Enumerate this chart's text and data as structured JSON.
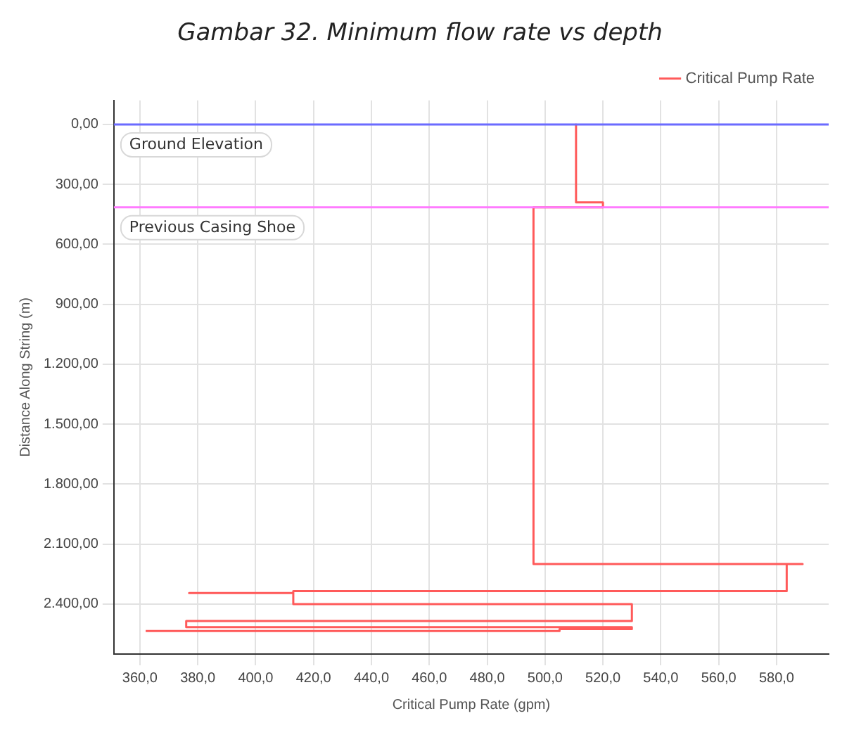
{
  "chart_data": {
    "type": "line",
    "title": "Gambar 32. Minimum flow rate vs depth",
    "xlabel": "Critical Pump Rate (gpm)",
    "ylabel": "Distance Along String (m)",
    "series": [
      {
        "name": "Critical Pump Rate",
        "color": "#ff5a5a",
        "x": [
          510.7,
          510.7,
          520,
          520,
          496,
          496,
          589,
          583.5,
          583.5,
          413,
          413,
          377,
          413,
          413,
          530,
          530,
          376,
          376,
          530,
          530,
          505,
          505,
          362
        ],
        "values": [
          0,
          390,
          390,
          415,
          415,
          2200,
          2200,
          2200,
          2335,
          2335,
          2345,
          2345,
          2345,
          2400,
          2400,
          2485,
          2485,
          2515,
          2515,
          2525,
          2525,
          2535,
          2535
        ]
      }
    ],
    "xlim": [
      351,
      598
    ],
    "ylim": [
      2650,
      -120
    ],
    "xticks": [
      {
        "value": 360,
        "label": "360,0"
      },
      {
        "value": 380,
        "label": "380,0"
      },
      {
        "value": 400,
        "label": "400,0"
      },
      {
        "value": 420,
        "label": "420,0"
      },
      {
        "value": 440,
        "label": "440,0"
      },
      {
        "value": 460,
        "label": "460,0"
      },
      {
        "value": 480,
        "label": "480,0"
      },
      {
        "value": 500,
        "label": "500,0"
      },
      {
        "value": 520,
        "label": "520,0"
      },
      {
        "value": 540,
        "label": "540,0"
      },
      {
        "value": 560,
        "label": "560,0"
      },
      {
        "value": 580,
        "label": "580,0"
      }
    ],
    "yticks": [
      {
        "value": 0,
        "label": "0,00"
      },
      {
        "value": 300,
        "label": "300,00"
      },
      {
        "value": 600,
        "label": "600,00"
      },
      {
        "value": 900,
        "label": "900,00"
      },
      {
        "value": 1200,
        "label": "1.200,00"
      },
      {
        "value": 1500,
        "label": "1.500,00"
      },
      {
        "value": 1800,
        "label": "1.800,00"
      },
      {
        "value": 2100,
        "label": "2.100,00"
      },
      {
        "value": 2400,
        "label": "2.400,00"
      }
    ],
    "ref_lines": [
      {
        "axis": "y",
        "value": 0,
        "label": "Ground Elevation",
        "color": "#6b6bff"
      },
      {
        "axis": "y",
        "value": 415,
        "label": "Previous Casing Shoe",
        "color": "#ff7bff"
      }
    ],
    "grid": true,
    "legend": "top right",
    "marker": "none",
    "line_style": "solid"
  }
}
